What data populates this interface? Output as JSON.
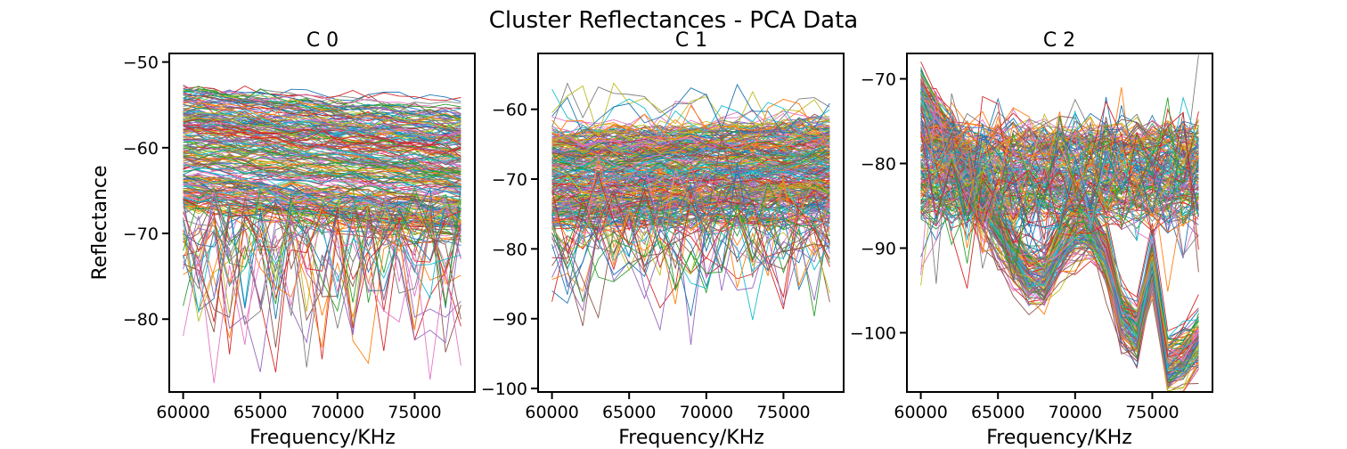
{
  "figure": {
    "title": "Cluster Reflectances - PCA Data"
  },
  "chart_data": [
    {
      "type": "line",
      "title": "C 0",
      "xlabel": "Frequency/KHz",
      "ylabel": "Reflectance",
      "x_range": [
        60000,
        78000
      ],
      "xlim": [
        59100,
        78900
      ],
      "ylim": [
        -88.5,
        -49
      ],
      "xticks": [
        60000,
        65000,
        70000,
        75000
      ],
      "yticks": [
        -50,
        -60,
        -70,
        -80
      ],
      "grid": false,
      "legend": "none",
      "series_description": "many per-sample reflectance spectra; dense band between about -52 and -68 dB across 60000-78000 KHz, with sparse outliers dipping to about -87 dB"
    },
    {
      "type": "line",
      "title": "C 1",
      "xlabel": "Frequency/KHz",
      "ylabel": "",
      "x_range": [
        60000,
        78000
      ],
      "xlim": [
        59100,
        78900
      ],
      "ylim": [
        -100.5,
        -52
      ],
      "xticks": [
        60000,
        65000,
        70000,
        75000
      ],
      "yticks": [
        -60,
        -70,
        -80,
        -90,
        -100
      ],
      "grid": false,
      "legend": "none",
      "series_description": "many per-sample reflectance spectra; dense band between about -62 and -80 dB, sparse outliers from about -57 down to about -98 dB"
    },
    {
      "type": "line",
      "title": "C 2",
      "xlabel": "Frequency/KHz",
      "ylabel": "",
      "x_range": [
        60000,
        78000
      ],
      "xlim": [
        59100,
        78900
      ],
      "ylim": [
        -107,
        -67
      ],
      "xticks": [
        60000,
        65000,
        70000,
        75000
      ],
      "yticks": [
        -70,
        -80,
        -90,
        -100
      ],
      "grid": false,
      "legend": "none",
      "series_description": "two groups of spectra: a flat group around -75 to -85 dB and a group that drops from about -73 dB at 60000 to about -93 dB near 67000, recovers to about -87 dB near 70000, then dips to about -100 dB near 74000 and about -104 dB near 76000-78000"
    }
  ],
  "colors": [
    "#1f77b4",
    "#ff7f0e",
    "#2ca02c",
    "#d62728",
    "#9467bd",
    "#8c564b",
    "#e377c2",
    "#7f7f7f",
    "#bcbd22",
    "#17becf"
  ]
}
